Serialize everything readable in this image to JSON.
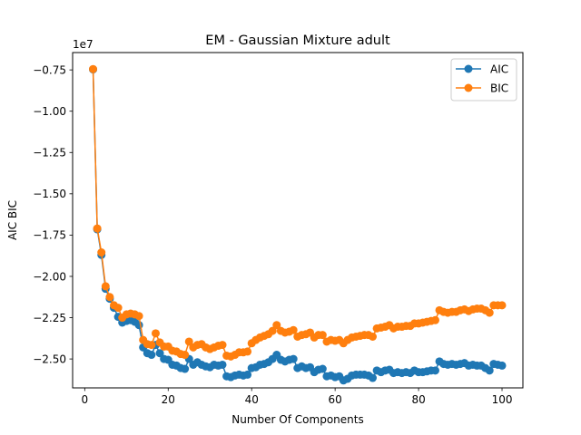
{
  "chart_data": {
    "type": "line",
    "title": "EM - Gaussian Mixture adult",
    "xlabel": "Number Of Components",
    "ylabel": "AIC BIC",
    "y_offset_label": "1e7",
    "xlim": [
      -2.9,
      105
    ],
    "ylim": [
      -26750000.0,
      -6450000.0
    ],
    "x_ticks": [
      0,
      20,
      40,
      60,
      80,
      100
    ],
    "x_tick_labels": [
      "0",
      "20",
      "40",
      "60",
      "80",
      "100"
    ],
    "y_ticks": [
      -25000000.0,
      -22500000.0,
      -20000000.0,
      -17500000.0,
      -15000000.0,
      -12500000.0,
      -10000000.0,
      -7500000.0
    ],
    "y_tick_labels": [
      "−2.50",
      "−2.25",
      "−2.00",
      "−1.75",
      "−1.50",
      "−1.25",
      "−1.00",
      "−0.75"
    ],
    "grid": false,
    "legend_position": "top-right",
    "x": [
      2,
      3,
      4,
      5,
      6,
      7,
      8,
      9,
      10,
      11,
      12,
      13,
      14,
      15,
      16,
      17,
      18,
      19,
      20,
      21,
      22,
      23,
      24,
      25,
      26,
      27,
      28,
      29,
      30,
      31,
      32,
      33,
      34,
      35,
      36,
      37,
      38,
      39,
      40,
      41,
      42,
      43,
      44,
      45,
      46,
      47,
      48,
      49,
      50,
      51,
      52,
      53,
      54,
      55,
      56,
      57,
      58,
      59,
      60,
      61,
      62,
      63,
      64,
      65,
      66,
      67,
      68,
      69,
      70,
      71,
      72,
      73,
      74,
      75,
      76,
      77,
      78,
      79,
      80,
      81,
      82,
      83,
      84,
      85,
      86,
      87,
      88,
      89,
      90,
      91,
      92,
      93,
      94,
      95,
      96,
      97,
      98,
      99,
      100
    ],
    "series": [
      {
        "name": "AIC",
        "color": "#1f77b4",
        "values": [
          -7470000,
          -17150000,
          -18700000,
          -20750000,
          -21350000,
          -21900000,
          -22450000,
          -22800000,
          -22700000,
          -22650000,
          -22750000,
          -22950000,
          -24300000,
          -24650000,
          -24750000,
          -24150000,
          -24650000,
          -25000000,
          -25050000,
          -25350000,
          -25400000,
          -25550000,
          -25600000,
          -25000000,
          -25350000,
          -25200000,
          -25350000,
          -25450000,
          -25500000,
          -25350000,
          -25400000,
          -25350000,
          -26050000,
          -26100000,
          -26000000,
          -25950000,
          -26000000,
          -25950000,
          -25550000,
          -25500000,
          -25350000,
          -25300000,
          -25200000,
          -25000000,
          -24750000,
          -25050000,
          -25150000,
          -25050000,
          -25000000,
          -25550000,
          -25450000,
          -25550000,
          -25500000,
          -25800000,
          -25650000,
          -25600000,
          -26050000,
          -26000000,
          -26100000,
          -26050000,
          -26300000,
          -26200000,
          -26000000,
          -25950000,
          -25950000,
          -25950000,
          -26000000,
          -26150000,
          -25700000,
          -25800000,
          -25700000,
          -25650000,
          -25850000,
          -25800000,
          -25850000,
          -25800000,
          -25850000,
          -25700000,
          -25800000,
          -25800000,
          -25750000,
          -25700000,
          -25700000,
          -25150000,
          -25300000,
          -25350000,
          -25300000,
          -25350000,
          -25300000,
          -25250000,
          -25400000,
          -25350000,
          -25400000,
          -25400000,
          -25550000,
          -25700000,
          -25300000,
          -25350000,
          -25400000
        ]
      },
      {
        "name": "BIC",
        "color": "#ff7f0e",
        "values": [
          -7450000,
          -17100000,
          -18550000,
          -20600000,
          -21250000,
          -21750000,
          -21900000,
          -22500000,
          -22300000,
          -22250000,
          -22300000,
          -22400000,
          -23850000,
          -24100000,
          -24150000,
          -23450000,
          -24000000,
          -24250000,
          -24250000,
          -24500000,
          -24550000,
          -24700000,
          -24750000,
          -23950000,
          -24300000,
          -24150000,
          -24100000,
          -24300000,
          -24400000,
          -24300000,
          -24200000,
          -24150000,
          -24800000,
          -24850000,
          -24750000,
          -24600000,
          -24600000,
          -24550000,
          -24050000,
          -23850000,
          -23700000,
          -23600000,
          -23500000,
          -23300000,
          -22950000,
          -23300000,
          -23400000,
          -23350000,
          -23250000,
          -23650000,
          -23550000,
          -23500000,
          -23400000,
          -23700000,
          -23550000,
          -23550000,
          -23950000,
          -23850000,
          -23900000,
          -23850000,
          -24050000,
          -23850000,
          -23700000,
          -23650000,
          -23600000,
          -23550000,
          -23550000,
          -23650000,
          -23150000,
          -23100000,
          -23050000,
          -22950000,
          -23150000,
          -23050000,
          -23050000,
          -23000000,
          -23000000,
          -22850000,
          -22850000,
          -22800000,
          -22750000,
          -22700000,
          -22650000,
          -22050000,
          -22150000,
          -22200000,
          -22150000,
          -22150000,
          -22050000,
          -22000000,
          -22100000,
          -22000000,
          -21950000,
          -21950000,
          -22050000,
          -22200000,
          -21750000,
          -21750000,
          -21750000
        ]
      }
    ]
  }
}
